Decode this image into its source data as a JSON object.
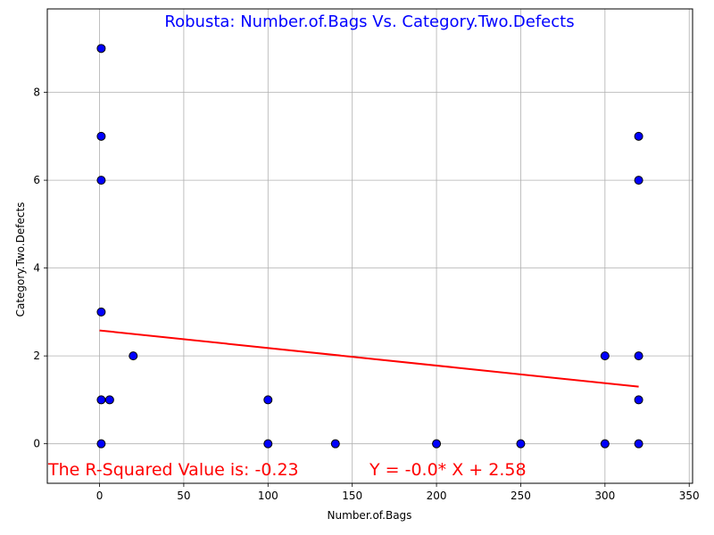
{
  "chart_data": {
    "type": "scatter",
    "title": "Robusta: Number.of.Bags Vs. Category.Two.Defects",
    "title_color": "#0000ff",
    "xlabel": "Number.of.Bags",
    "ylabel": "Category.Two.Defects",
    "xlim": [
      -31,
      352
    ],
    "ylim": [
      -0.9,
      9.9
    ],
    "xticks": [
      0,
      50,
      100,
      150,
      200,
      250,
      300,
      350
    ],
    "yticks": [
      0,
      2,
      4,
      6,
      8
    ],
    "grid": true,
    "point_color": "#0000ff",
    "point_edge": "#000000",
    "points": [
      {
        "x": 1,
        "y": 9
      },
      {
        "x": 1,
        "y": 7
      },
      {
        "x": 1,
        "y": 6
      },
      {
        "x": 1,
        "y": 3
      },
      {
        "x": 1,
        "y": 1
      },
      {
        "x": 1,
        "y": 0
      },
      {
        "x": 6,
        "y": 1
      },
      {
        "x": 20,
        "y": 2
      },
      {
        "x": 100,
        "y": 1
      },
      {
        "x": 100,
        "y": 0
      },
      {
        "x": 140,
        "y": 0
      },
      {
        "x": 200,
        "y": 0
      },
      {
        "x": 250,
        "y": 0
      },
      {
        "x": 300,
        "y": 2
      },
      {
        "x": 300,
        "y": 0
      },
      {
        "x": 320,
        "y": 7
      },
      {
        "x": 320,
        "y": 6
      },
      {
        "x": 320,
        "y": 2
      },
      {
        "x": 320,
        "y": 1
      },
      {
        "x": 320,
        "y": 0
      }
    ],
    "regression": {
      "slope": -0.004,
      "intercept": 2.58,
      "x_range": [
        0,
        320
      ],
      "color": "#ff0000"
    },
    "annotations": [
      {
        "id": "r2",
        "text": "The R-Squared Value is: -0.23",
        "color": "#ff0000"
      },
      {
        "id": "eq",
        "text": "Y = -0.0* X + 2.58",
        "color": "#ff0000"
      }
    ]
  }
}
